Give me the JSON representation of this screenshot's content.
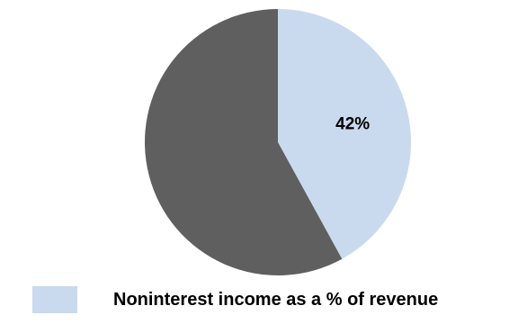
{
  "chart_data": {
    "type": "pie",
    "title": "",
    "slices": [
      {
        "name": "Noninterest income as a % of revenue",
        "value": 42,
        "label": "42%",
        "color": "#c9daee"
      },
      {
        "name": "",
        "value": 58,
        "label": "",
        "color": "#5f5f5f"
      }
    ],
    "legend": {
      "placement": "bottom-left",
      "entries": [
        {
          "label": "Noninterest income as a % of revenue",
          "color": "#c9daee"
        }
      ]
    }
  }
}
